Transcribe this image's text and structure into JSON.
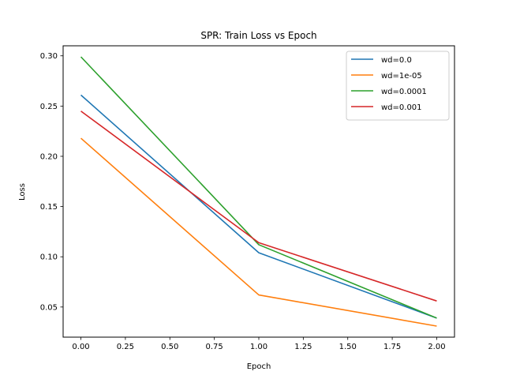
{
  "chart_data": {
    "type": "line",
    "title": "SPR: Train Loss vs Epoch",
    "xlabel": "Epoch",
    "ylabel": "Loss",
    "xlim": [
      -0.1,
      2.1
    ],
    "ylim": [
      0.02,
      0.31
    ],
    "xticks": [
      0.0,
      0.25,
      0.5,
      0.75,
      1.0,
      1.25,
      1.5,
      1.75,
      2.0
    ],
    "xtick_labels": [
      "0.00",
      "0.25",
      "0.50",
      "0.75",
      "1.00",
      "1.25",
      "1.50",
      "1.75",
      "2.00"
    ],
    "yticks": [
      0.05,
      0.1,
      0.15,
      0.2,
      0.25,
      0.3
    ],
    "ytick_labels": [
      "0.05",
      "0.10",
      "0.15",
      "0.20",
      "0.25",
      "0.30"
    ],
    "grid": false,
    "legend_position": "top-right",
    "x": [
      0,
      1,
      2
    ],
    "series": [
      {
        "name": "wd=0.0",
        "color": "#1f77b4",
        "values": [
          0.261,
          0.104,
          0.039
        ]
      },
      {
        "name": "wd=1e-05",
        "color": "#ff7f0e",
        "values": [
          0.218,
          0.062,
          0.031
        ]
      },
      {
        "name": "wd=0.0001",
        "color": "#2ca02c",
        "values": [
          0.299,
          0.112,
          0.039
        ]
      },
      {
        "name": "wd=0.001",
        "color": "#d62728",
        "values": [
          0.245,
          0.114,
          0.056
        ]
      }
    ]
  }
}
